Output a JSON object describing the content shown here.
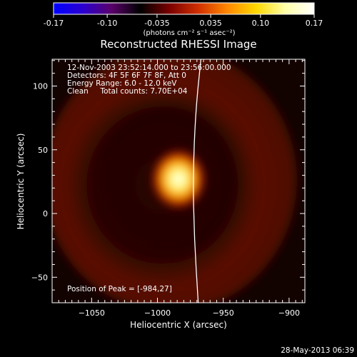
{
  "colorbar": {
    "tick_labels": [
      "-0.17",
      "-0.10",
      "-0.035",
      "0.035",
      "0.10",
      "0.17"
    ],
    "values": [
      -0.17,
      -0.1,
      -0.035,
      0.035,
      0.1,
      0.17
    ],
    "min": -0.17,
    "max": 0.17,
    "units_label": "(photons cm⁻² s⁻¹ asec⁻²)",
    "colormap": [
      "#0000ff",
      "#2a00d0",
      "#5a006a",
      "#000000",
      "#7a0000",
      "#d23000",
      "#ff8800",
      "#ffd800",
      "#ffffa8",
      "#ffffff"
    ]
  },
  "chart_data": {
    "type": "heatmap",
    "title": "Reconstructed RHESSI Image",
    "xlabel": "Heliocentric X (arcsec)",
    "ylabel": "Heliocentric Y (arcsec)",
    "xlim": [
      -1080,
      -888
    ],
    "ylim": [
      -70,
      121
    ],
    "x_ticks": [
      -1050,
      -1000,
      -950,
      -900
    ],
    "x_tick_labels": [
      "−1050",
      "−1000",
      "−950",
      "−900"
    ],
    "y_ticks": [
      -50,
      0,
      50,
      100
    ],
    "y_tick_labels": [
      "−50",
      "0",
      "50",
      "100"
    ],
    "peak": {
      "x": -984,
      "y": 27
    },
    "info_lines": [
      "12-Nov-2003 23:52:14.000 to 23:56:00.000",
      "Detectors: 4F 5F 6F 7F 8F, Att 0",
      "Energy Range: 6.0 - 12.0 keV",
      "Clean     Total counts: 7.70E+04"
    ],
    "peak_label": "Position of Peak = [-984,27]",
    "limb_curve": [
      [
        -969,
        -70
      ],
      [
        -972,
        -20
      ],
      [
        -973,
        30
      ],
      [
        -971,
        80
      ],
      [
        -967,
        121
      ]
    ]
  },
  "footer": {
    "date": "28-May-2013 06:39"
  }
}
